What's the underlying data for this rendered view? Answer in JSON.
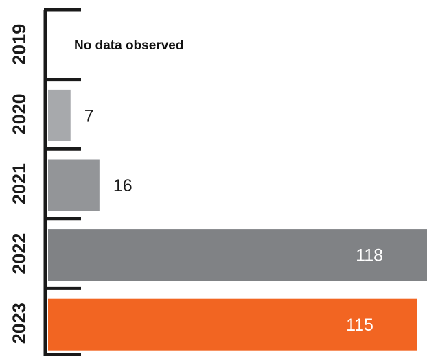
{
  "chart_data": {
    "type": "bar",
    "orientation": "horizontal",
    "categories": [
      "2019",
      "2020",
      "2021",
      "2022",
      "2023"
    ],
    "values": [
      null,
      7,
      16,
      118,
      115
    ],
    "empty_note": "No data observed",
    "xlim": [
      0,
      118
    ],
    "title": "",
    "xlabel": "",
    "ylabel": "",
    "grid": false,
    "legend": "none",
    "colors": [
      "#a7a9ac",
      "#a7a9ac",
      "#939598",
      "#808285",
      "#f26522"
    ],
    "label_colors": [
      "#1a1a1a",
      "#1a1a1a",
      "#1a1a1a",
      "#ffffff",
      "#ffffff"
    ],
    "axis_color": "#1a1a1a"
  }
}
